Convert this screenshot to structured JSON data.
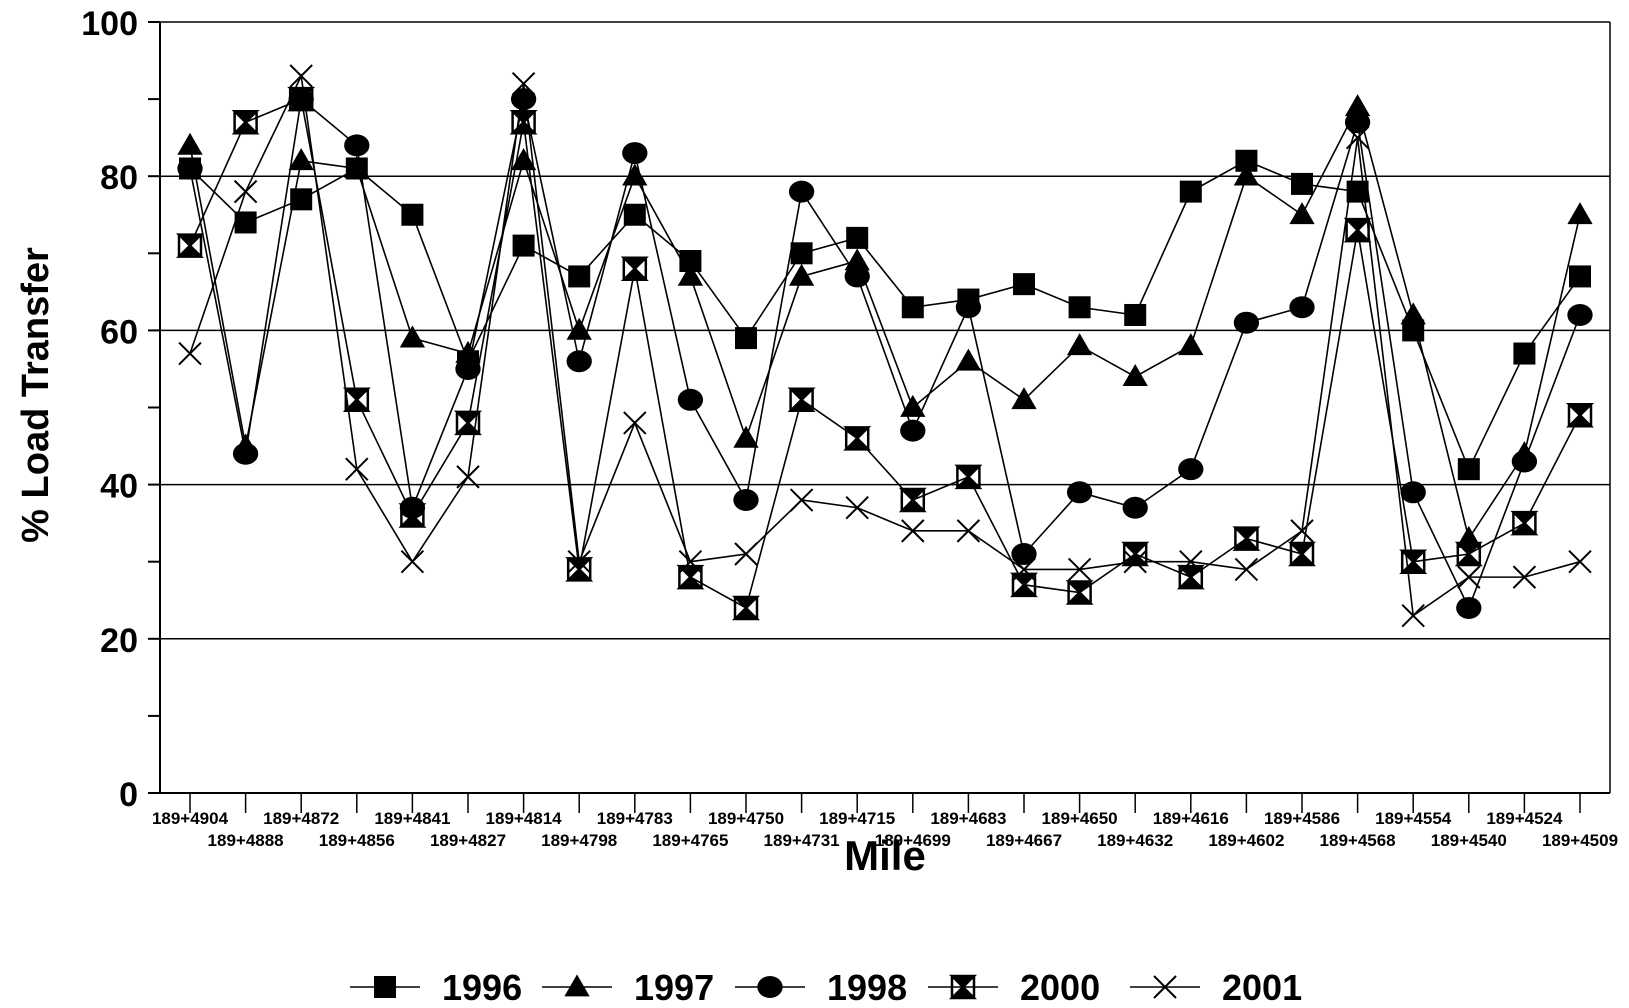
{
  "chart_data": {
    "type": "line",
    "xlabel": "Mile",
    "ylabel": "% Load Transfer",
    "ylim": [
      0,
      100
    ],
    "yticks": [
      0,
      20,
      40,
      60,
      80,
      100
    ],
    "grid": "horizontal major gridlines at 20, 40, 60, 80",
    "legend_position": "bottom-center",
    "categories": [
      "189+4904",
      "189+4888",
      "189+4872",
      "189+4856",
      "189+4841",
      "189+4827",
      "189+4814",
      "189+4798",
      "189+4783",
      "189+4765",
      "189+4750",
      "189+4731",
      "189+4715",
      "189+4699",
      "189+4683",
      "189+4667",
      "189+4650",
      "189+4632",
      "189+4616",
      "189+4602",
      "189+4586",
      "189+4568",
      "189+4554",
      "189+4540",
      "189+4524",
      "189+4509"
    ],
    "series": [
      {
        "name": "1996",
        "marker": "square",
        "values": [
          81,
          74,
          77,
          81,
          75,
          56,
          71,
          67,
          75,
          69,
          59,
          70,
          72,
          63,
          64,
          66,
          63,
          62,
          78,
          82,
          79,
          78,
          60,
          42,
          57,
          67
        ]
      },
      {
        "name": "1997",
        "marker": "triangle",
        "values": [
          84,
          45,
          82,
          81,
          59,
          57,
          82,
          60,
          80,
          67,
          46,
          67,
          69,
          50,
          56,
          51,
          58,
          54,
          58,
          80,
          75,
          89,
          62,
          33,
          44,
          75
        ]
      },
      {
        "name": "1998",
        "marker": "circle",
        "values": [
          81,
          44,
          90,
          84,
          37,
          55,
          90,
          56,
          83,
          51,
          38,
          78,
          67,
          47,
          63,
          31,
          39,
          37,
          42,
          61,
          63,
          87,
          39,
          24,
          43,
          62
        ]
      },
      {
        "name": "2000",
        "marker": "hourglass",
        "values": [
          71,
          87,
          90,
          51,
          36,
          48,
          87,
          29,
          68,
          28,
          24,
          51,
          46,
          38,
          41,
          27,
          26,
          31,
          28,
          33,
          31,
          73,
          30,
          31,
          35,
          49
        ]
      },
      {
        "name": "2001",
        "marker": "x",
        "values": [
          57,
          78,
          93,
          42,
          30,
          41,
          92,
          30,
          48,
          30,
          31,
          38,
          37,
          34,
          34,
          29,
          29,
          30,
          30,
          29,
          34,
          85,
          23,
          28,
          28,
          30
        ]
      }
    ]
  }
}
